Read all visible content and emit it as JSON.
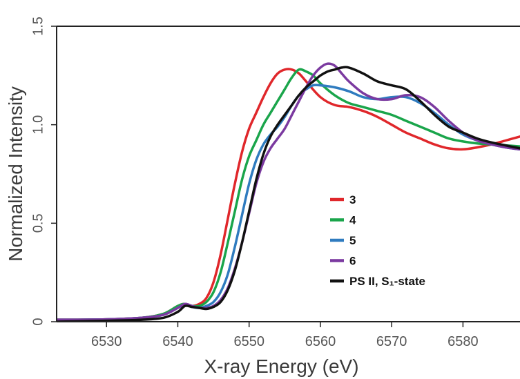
{
  "chart_data": {
    "type": "line",
    "xlabel": "X-ray Energy (eV)",
    "ylabel": "Normalized Intensity",
    "xlim": [
      6523,
      6588
    ],
    "ylim": [
      0,
      1.5
    ],
    "xticks": [
      "6530",
      "6540",
      "6550",
      "6560",
      "6570",
      "6580"
    ],
    "yticks": [
      "0",
      "0.5",
      "1.0",
      "1.5"
    ],
    "grid": false,
    "legend_position": "center-right",
    "series": [
      {
        "name": "3",
        "color": "#e0272b",
        "x": [
          6523,
          6530,
          6535,
          6538,
          6540,
          6541,
          6542,
          6543,
          6544,
          6545,
          6546,
          6547,
          6548,
          6549,
          6550,
          6551,
          6552,
          6553,
          6554,
          6555,
          6556,
          6557,
          6558,
          6560,
          6562,
          6564,
          6566,
          6568,
          6570,
          6572,
          6574,
          6576,
          6578,
          6580,
          6582,
          6584,
          6586,
          6588
        ],
        "y": [
          0.01,
          0.012,
          0.02,
          0.04,
          0.08,
          0.09,
          0.08,
          0.09,
          0.12,
          0.2,
          0.34,
          0.52,
          0.7,
          0.86,
          0.98,
          1.06,
          1.14,
          1.21,
          1.26,
          1.28,
          1.28,
          1.26,
          1.22,
          1.14,
          1.1,
          1.09,
          1.07,
          1.04,
          1.0,
          0.96,
          0.93,
          0.9,
          0.88,
          0.875,
          0.885,
          0.9,
          0.92,
          0.94
        ]
      },
      {
        "name": "4",
        "color": "#1aa54b",
        "x": [
          6523,
          6530,
          6535,
          6538,
          6540,
          6541,
          6542,
          6543,
          6544,
          6545,
          6546,
          6547,
          6548,
          6549,
          6550,
          6551,
          6552,
          6553,
          6554,
          6555,
          6556,
          6557,
          6558,
          6559,
          6560,
          6562,
          6564,
          6566,
          6568,
          6570,
          6572,
          6574,
          6576,
          6578,
          6580,
          6582,
          6584,
          6586,
          6588
        ],
        "y": [
          0.01,
          0.012,
          0.02,
          0.04,
          0.08,
          0.09,
          0.08,
          0.08,
          0.1,
          0.15,
          0.25,
          0.4,
          0.56,
          0.72,
          0.84,
          0.92,
          1.0,
          1.06,
          1.12,
          1.18,
          1.24,
          1.28,
          1.27,
          1.25,
          1.21,
          1.15,
          1.11,
          1.09,
          1.07,
          1.05,
          1.02,
          0.99,
          0.96,
          0.93,
          0.915,
          0.905,
          0.9,
          0.895,
          0.89
        ]
      },
      {
        "name": "5",
        "color": "#2f7bbf",
        "x": [
          6523,
          6530,
          6535,
          6538,
          6540,
          6541,
          6542,
          6543,
          6544,
          6545,
          6546,
          6547,
          6548,
          6549,
          6550,
          6551,
          6552,
          6553,
          6554,
          6555,
          6556,
          6557,
          6558,
          6559,
          6560,
          6562,
          6564,
          6566,
          6568,
          6570,
          6572,
          6574,
          6576,
          6578,
          6580,
          6582,
          6584,
          6586,
          6588
        ],
        "y": [
          0.01,
          0.012,
          0.02,
          0.035,
          0.07,
          0.085,
          0.075,
          0.07,
          0.08,
          0.1,
          0.15,
          0.24,
          0.38,
          0.54,
          0.7,
          0.82,
          0.9,
          0.95,
          0.99,
          1.04,
          1.1,
          1.15,
          1.18,
          1.2,
          1.2,
          1.19,
          1.17,
          1.14,
          1.13,
          1.14,
          1.14,
          1.11,
          1.06,
          1.0,
          0.95,
          0.92,
          0.9,
          0.885,
          0.875
        ]
      },
      {
        "name": "6",
        "color": "#7b3aa0",
        "x": [
          6523,
          6530,
          6535,
          6538,
          6540,
          6541,
          6542,
          6543,
          6544,
          6545,
          6546,
          6547,
          6548,
          6549,
          6550,
          6551,
          6552,
          6553,
          6554,
          6555,
          6556,
          6557,
          6558,
          6559,
          6560,
          6561,
          6562,
          6563,
          6564,
          6566,
          6568,
          6570,
          6572,
          6574,
          6576,
          6578,
          6580,
          6582,
          6584,
          6586,
          6588
        ],
        "y": [
          0.01,
          0.012,
          0.02,
          0.035,
          0.07,
          0.09,
          0.08,
          0.07,
          0.07,
          0.08,
          0.11,
          0.17,
          0.27,
          0.4,
          0.55,
          0.7,
          0.81,
          0.88,
          0.93,
          0.98,
          1.05,
          1.12,
          1.19,
          1.25,
          1.29,
          1.31,
          1.3,
          1.26,
          1.22,
          1.16,
          1.13,
          1.13,
          1.15,
          1.14,
          1.09,
          1.02,
          0.96,
          0.92,
          0.9,
          0.885,
          0.875
        ]
      },
      {
        "name": "PS II, S₁-state",
        "color": "#111111",
        "x": [
          6523,
          6530,
          6535,
          6538,
          6540,
          6541,
          6542,
          6543,
          6544,
          6545,
          6546,
          6547,
          6548,
          6549,
          6550,
          6551,
          6552,
          6553,
          6554,
          6555,
          6556,
          6557,
          6558,
          6559,
          6560,
          6561,
          6562,
          6563,
          6564,
          6566,
          6568,
          6570,
          6572,
          6574,
          6576,
          6578,
          6580,
          6582,
          6584,
          6586,
          6588
        ],
        "y": [
          0.0,
          0.005,
          0.01,
          0.02,
          0.05,
          0.08,
          0.075,
          0.07,
          0.065,
          0.075,
          0.1,
          0.16,
          0.26,
          0.4,
          0.56,
          0.72,
          0.85,
          0.94,
          1.0,
          1.05,
          1.1,
          1.15,
          1.19,
          1.22,
          1.25,
          1.27,
          1.28,
          1.29,
          1.29,
          1.26,
          1.22,
          1.2,
          1.18,
          1.12,
          1.05,
          0.99,
          0.96,
          0.93,
          0.91,
          0.895,
          0.88
        ]
      }
    ]
  }
}
